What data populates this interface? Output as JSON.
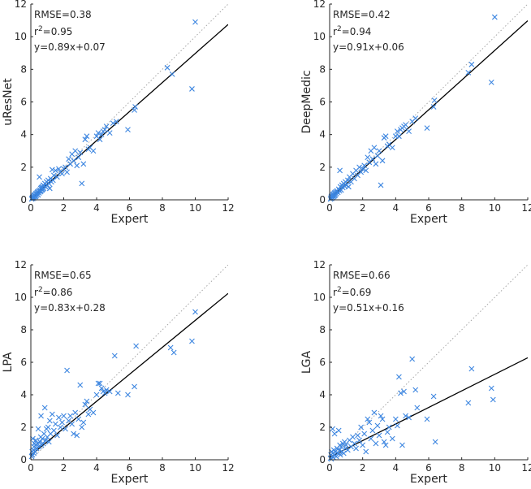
{
  "colors": {
    "marker": "#3d86e0",
    "fit_line": "#000000",
    "identity_line": "#a6a6a6",
    "axis": "#262626"
  },
  "chart_data": [
    {
      "type": "scatter",
      "xlabel": "Expert",
      "ylabel": "uResNet",
      "xlim": [
        0,
        12
      ],
      "ylim": [
        0,
        12
      ],
      "xticks": [
        "0",
        "2",
        "4",
        "6",
        "8",
        "10",
        "12"
      ],
      "yticks": [
        "0",
        "2",
        "4",
        "6",
        "8",
        "10",
        "12"
      ],
      "grid": false,
      "stats": {
        "rmse": "RMSE=0.38",
        "r2_prefix": "r",
        "r2_exp": "2",
        "r2_value": "=0.95",
        "equation": "y=0.89x+0.07"
      },
      "fit": {
        "slope": 0.89,
        "intercept": 0.07
      },
      "points": [
        [
          0.05,
          0.05
        ],
        [
          0.08,
          0.1
        ],
        [
          0.1,
          0.15
        ],
        [
          0.12,
          0.08
        ],
        [
          0.15,
          0.2
        ],
        [
          0.18,
          0.12
        ],
        [
          0.2,
          0.25
        ],
        [
          0.22,
          0.3
        ],
        [
          0.25,
          0.18
        ],
        [
          0.28,
          0.35
        ],
        [
          0.3,
          0.22
        ],
        [
          0.32,
          0.4
        ],
        [
          0.35,
          0.28
        ],
        [
          0.38,
          0.45
        ],
        [
          0.4,
          0.35
        ],
        [
          0.42,
          0.5
        ],
        [
          0.45,
          0.3
        ],
        [
          0.48,
          0.55
        ],
        [
          0.5,
          0.42
        ],
        [
          0.52,
          1.4
        ],
        [
          0.55,
          0.6
        ],
        [
          0.58,
          0.5
        ],
        [
          0.6,
          0.7
        ],
        [
          0.62,
          0.55
        ],
        [
          0.65,
          0.75
        ],
        [
          0.68,
          0.6
        ],
        [
          0.7,
          0.8
        ],
        [
          0.72,
          0.65
        ],
        [
          0.75,
          0.9
        ],
        [
          0.78,
          0.7
        ],
        [
          0.8,
          0.85
        ],
        [
          0.85,
          1.0
        ],
        [
          0.9,
          0.8
        ],
        [
          0.95,
          1.1
        ],
        [
          1.0,
          0.9
        ],
        [
          1.05,
          1.2
        ],
        [
          1.1,
          1.0
        ],
        [
          1.15,
          0.7
        ],
        [
          1.2,
          1.3
        ],
        [
          1.25,
          1.1
        ],
        [
          1.3,
          1.85
        ],
        [
          1.35,
          1.2
        ],
        [
          1.4,
          1.5
        ],
        [
          1.5,
          1.8
        ],
        [
          1.6,
          1.4
        ],
        [
          1.7,
          1.9
        ],
        [
          1.8,
          1.7
        ],
        [
          1.9,
          1.6
        ],
        [
          2.0,
          1.9
        ],
        [
          2.1,
          2.0
        ],
        [
          2.2,
          1.7
        ],
        [
          2.3,
          2.5
        ],
        [
          2.4,
          2.2
        ],
        [
          2.5,
          2.8
        ],
        [
          2.6,
          2.4
        ],
        [
          2.7,
          3.0
        ],
        [
          2.8,
          2.1
        ],
        [
          2.9,
          2.6
        ],
        [
          3.0,
          2.9
        ],
        [
          3.1,
          1.0
        ],
        [
          3.2,
          2.2
        ],
        [
          3.3,
          3.7
        ],
        [
          3.4,
          3.9
        ],
        [
          3.5,
          3.1
        ],
        [
          3.6,
          3.2
        ],
        [
          3.8,
          3.0
        ],
        [
          4.0,
          3.9
        ],
        [
          4.1,
          4.1
        ],
        [
          4.2,
          3.7
        ],
        [
          4.3,
          4.0
        ],
        [
          4.4,
          4.2
        ],
        [
          4.5,
          4.3
        ],
        [
          4.6,
          4.5
        ],
        [
          4.8,
          4.1
        ],
        [
          5.0,
          4.7
        ],
        [
          5.2,
          4.8
        ],
        [
          5.9,
          4.3
        ],
        [
          6.3,
          5.5
        ],
        [
          6.35,
          5.7
        ],
        [
          8.3,
          8.1
        ],
        [
          8.6,
          7.7
        ],
        [
          9.8,
          6.8
        ],
        [
          10.0,
          10.9
        ]
      ]
    },
    {
      "type": "scatter",
      "xlabel": "Expert",
      "ylabel": "DeepMedic",
      "xlim": [
        0,
        12
      ],
      "ylim": [
        0,
        12
      ],
      "xticks": [
        "0",
        "2",
        "4",
        "6",
        "8",
        "10",
        "12"
      ],
      "yticks": [
        "0",
        "2",
        "4",
        "6",
        "8",
        "10",
        "12"
      ],
      "grid": false,
      "stats": {
        "rmse": "RMSE=0.42",
        "r2_prefix": "r",
        "r2_exp": "2",
        "r2_value": "=0.94",
        "equation": "y=0.91x+0.06"
      },
      "fit": {
        "slope": 0.91,
        "intercept": 0.06
      },
      "points": [
        [
          0.05,
          0.05
        ],
        [
          0.08,
          0.12
        ],
        [
          0.1,
          0.2
        ],
        [
          0.12,
          0.08
        ],
        [
          0.15,
          0.25
        ],
        [
          0.18,
          0.15
        ],
        [
          0.2,
          0.3
        ],
        [
          0.22,
          0.35
        ],
        [
          0.25,
          0.2
        ],
        [
          0.28,
          0.4
        ],
        [
          0.3,
          0.25
        ],
        [
          0.32,
          0.45
        ],
        [
          0.35,
          0.3
        ],
        [
          0.38,
          0.5
        ],
        [
          0.4,
          0.38
        ],
        [
          0.45,
          0.55
        ],
        [
          0.5,
          0.45
        ],
        [
          0.55,
          0.65
        ],
        [
          0.6,
          0.55
        ],
        [
          0.62,
          1.8
        ],
        [
          0.65,
          0.8
        ],
        [
          0.7,
          0.6
        ],
        [
          0.75,
          0.9
        ],
        [
          0.8,
          0.75
        ],
        [
          0.85,
          1.0
        ],
        [
          0.9,
          0.85
        ],
        [
          0.95,
          1.1
        ],
        [
          1.0,
          0.9
        ],
        [
          1.1,
          1.2
        ],
        [
          1.15,
          0.8
        ],
        [
          1.2,
          1.4
        ],
        [
          1.3,
          1.1
        ],
        [
          1.4,
          1.6
        ],
        [
          1.5,
          1.3
        ],
        [
          1.6,
          1.8
        ],
        [
          1.7,
          1.5
        ],
        [
          1.8,
          2.0
        ],
        [
          1.9,
          1.7
        ],
        [
          2.0,
          1.9
        ],
        [
          2.1,
          2.1
        ],
        [
          2.2,
          1.8
        ],
        [
          2.3,
          2.6
        ],
        [
          2.4,
          2.3
        ],
        [
          2.5,
          3.0
        ],
        [
          2.6,
          2.5
        ],
        [
          2.7,
          3.2
        ],
        [
          2.8,
          2.2
        ],
        [
          2.9,
          2.7
        ],
        [
          3.0,
          3.0
        ],
        [
          3.1,
          0.9
        ],
        [
          3.2,
          2.4
        ],
        [
          3.3,
          3.8
        ],
        [
          3.4,
          3.9
        ],
        [
          3.5,
          3.3
        ],
        [
          3.6,
          3.4
        ],
        [
          3.8,
          3.2
        ],
        [
          4.0,
          3.9
        ],
        [
          4.1,
          4.2
        ],
        [
          4.2,
          3.9
        ],
        [
          4.3,
          4.3
        ],
        [
          4.4,
          4.4
        ],
        [
          4.5,
          4.5
        ],
        [
          4.6,
          4.6
        ],
        [
          4.8,
          4.2
        ],
        [
          5.0,
          4.8
        ],
        [
          5.2,
          5.0
        ],
        [
          5.9,
          4.4
        ],
        [
          6.3,
          5.7
        ],
        [
          6.35,
          6.1
        ],
        [
          8.4,
          7.8
        ],
        [
          8.6,
          8.3
        ],
        [
          9.8,
          7.2
        ],
        [
          10.0,
          11.2
        ]
      ]
    },
    {
      "type": "scatter",
      "xlabel": "Expert",
      "ylabel": "LPA",
      "xlim": [
        0,
        12
      ],
      "ylim": [
        0,
        12
      ],
      "xticks": [
        "0",
        "2",
        "4",
        "6",
        "8",
        "10",
        "12"
      ],
      "yticks": [
        "0",
        "2",
        "4",
        "6",
        "8",
        "10",
        "12"
      ],
      "grid": false,
      "stats": {
        "rmse": "RMSE=0.65",
        "r2_prefix": "r",
        "r2_exp": "2",
        "r2_value": "=0.86",
        "equation": "y=0.83x+0.28"
      },
      "fit": {
        "slope": 0.83,
        "intercept": 0.28
      },
      "points": [
        [
          0.05,
          0.2
        ],
        [
          0.08,
          0.5
        ],
        [
          0.1,
          0.3
        ],
        [
          0.12,
          1.3
        ],
        [
          0.15,
          0.6
        ],
        [
          0.18,
          0.4
        ],
        [
          0.2,
          0.8
        ],
        [
          0.22,
          1.0
        ],
        [
          0.25,
          0.5
        ],
        [
          0.28,
          0.9
        ],
        [
          0.3,
          1.2
        ],
        [
          0.35,
          0.7
        ],
        [
          0.4,
          1.0
        ],
        [
          0.45,
          1.9
        ],
        [
          0.5,
          0.8
        ],
        [
          0.55,
          1.1
        ],
        [
          0.6,
          1.4
        ],
        [
          0.62,
          2.7
        ],
        [
          0.65,
          0.9
        ],
        [
          0.7,
          1.3
        ],
        [
          0.75,
          1.0
        ],
        [
          0.8,
          1.6
        ],
        [
          0.85,
          3.2
        ],
        [
          0.9,
          1.2
        ],
        [
          0.95,
          1.9
        ],
        [
          1.0,
          1.4
        ],
        [
          1.05,
          2.0
        ],
        [
          1.1,
          1.1
        ],
        [
          1.15,
          2.4
        ],
        [
          1.2,
          1.6
        ],
        [
          1.3,
          2.8
        ],
        [
          1.4,
          1.8
        ],
        [
          1.5,
          2.2
        ],
        [
          1.6,
          1.5
        ],
        [
          1.7,
          2.6
        ],
        [
          1.8,
          2.0
        ],
        [
          1.9,
          2.3
        ],
        [
          2.0,
          2.7
        ],
        [
          2.1,
          1.9
        ],
        [
          2.2,
          5.5
        ],
        [
          2.3,
          2.4
        ],
        [
          2.4,
          2.7
        ],
        [
          2.5,
          2.2
        ],
        [
          2.6,
          1.6
        ],
        [
          2.7,
          2.9
        ],
        [
          2.8,
          1.5
        ],
        [
          2.9,
          2.5
        ],
        [
          3.0,
          4.6
        ],
        [
          3.1,
          2.0
        ],
        [
          3.2,
          2.3
        ],
        [
          3.3,
          3.4
        ],
        [
          3.4,
          3.6
        ],
        [
          3.5,
          2.8
        ],
        [
          3.6,
          3.1
        ],
        [
          3.8,
          2.9
        ],
        [
          4.0,
          4.0
        ],
        [
          4.1,
          4.7
        ],
        [
          4.2,
          4.7
        ],
        [
          4.3,
          4.4
        ],
        [
          4.4,
          4.2
        ],
        [
          4.5,
          4.1
        ],
        [
          4.6,
          4.3
        ],
        [
          4.8,
          4.2
        ],
        [
          5.1,
          6.4
        ],
        [
          5.3,
          4.1
        ],
        [
          5.9,
          4.0
        ],
        [
          6.3,
          4.5
        ],
        [
          6.4,
          7.0
        ],
        [
          8.5,
          6.9
        ],
        [
          8.7,
          6.6
        ],
        [
          9.8,
          7.3
        ],
        [
          10.0,
          9.1
        ]
      ]
    },
    {
      "type": "scatter",
      "xlabel": "Expert",
      "ylabel": "LGA",
      "xlim": [
        0,
        12
      ],
      "ylim": [
        0,
        12
      ],
      "xticks": [
        "0",
        "2",
        "4",
        "6",
        "8",
        "10",
        "12"
      ],
      "yticks": [
        "0",
        "2",
        "4",
        "6",
        "8",
        "10",
        "12"
      ],
      "grid": false,
      "stats": {
        "rmse": "RMSE=0.66",
        "r2_prefix": "r",
        "r2_exp": "2",
        "r2_value": "=0.69",
        "equation": "y=0.51x+0.16"
      },
      "fit": {
        "slope": 0.51,
        "intercept": 0.16
      },
      "points": [
        [
          0.05,
          0.1
        ],
        [
          0.08,
          0.3
        ],
        [
          0.1,
          0.05
        ],
        [
          0.12,
          0.5
        ],
        [
          0.15,
          0.2
        ],
        [
          0.18,
          1.9
        ],
        [
          0.2,
          0.4
        ],
        [
          0.22,
          0.15
        ],
        [
          0.25,
          0.6
        ],
        [
          0.28,
          0.3
        ],
        [
          0.3,
          1.6
        ],
        [
          0.35,
          0.5
        ],
        [
          0.4,
          0.2
        ],
        [
          0.45,
          0.7
        ],
        [
          0.5,
          0.4
        ],
        [
          0.55,
          1.8
        ],
        [
          0.6,
          0.6
        ],
        [
          0.62,
          0.9
        ],
        [
          0.65,
          0.3
        ],
        [
          0.7,
          0.8
        ],
        [
          0.75,
          0.5
        ],
        [
          0.8,
          1.0
        ],
        [
          0.85,
          0.4
        ],
        [
          0.9,
          1.1
        ],
        [
          0.95,
          0.7
        ],
        [
          1.0,
          0.9
        ],
        [
          1.1,
          0.6
        ],
        [
          1.2,
          1.2
        ],
        [
          1.3,
          0.8
        ],
        [
          1.4,
          1.4
        ],
        [
          1.5,
          1.0
        ],
        [
          1.6,
          0.7
        ],
        [
          1.7,
          1.5
        ],
        [
          1.8,
          1.2
        ],
        [
          1.9,
          2.0
        ],
        [
          2.0,
          0.9
        ],
        [
          2.1,
          1.6
        ],
        [
          2.2,
          0.5
        ],
        [
          2.3,
          2.5
        ],
        [
          2.4,
          2.3
        ],
        [
          2.5,
          1.3
        ],
        [
          2.6,
          1.8
        ],
        [
          2.7,
          2.9
        ],
        [
          2.8,
          1.0
        ],
        [
          2.9,
          2.1
        ],
        [
          3.0,
          1.5
        ],
        [
          3.1,
          2.7
        ],
        [
          3.2,
          2.5
        ],
        [
          3.3,
          1.1
        ],
        [
          3.4,
          0.9
        ],
        [
          3.5,
          1.7
        ],
        [
          3.6,
          2.0
        ],
        [
          3.8,
          1.3
        ],
        [
          4.0,
          2.5
        ],
        [
          4.1,
          2.1
        ],
        [
          4.2,
          5.1
        ],
        [
          4.3,
          4.1
        ],
        [
          4.4,
          0.9
        ],
        [
          4.5,
          4.2
        ],
        [
          4.6,
          2.7
        ],
        [
          4.8,
          2.6
        ],
        [
          5.0,
          6.2
        ],
        [
          5.2,
          4.3
        ],
        [
          5.3,
          3.2
        ],
        [
          5.9,
          2.5
        ],
        [
          6.3,
          3.9
        ],
        [
          6.4,
          1.1
        ],
        [
          8.4,
          3.5
        ],
        [
          8.6,
          5.6
        ],
        [
          9.8,
          4.4
        ],
        [
          9.9,
          3.7
        ]
      ]
    }
  ]
}
